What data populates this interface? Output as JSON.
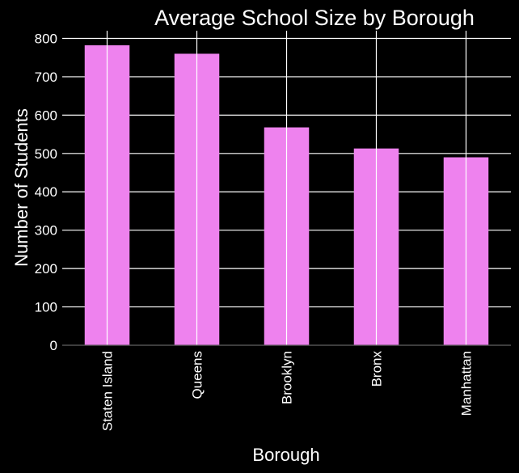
{
  "chart_data": {
    "type": "bar",
    "title": "Average School Size by Borough",
    "xlabel": "Borough",
    "ylabel": "Number of Students",
    "categories": [
      "Staten Island",
      "Queens",
      "Brooklyn",
      "Bronx",
      "Manhattan"
    ],
    "values": [
      782,
      760,
      568,
      513,
      490
    ],
    "ylim": [
      0,
      820
    ],
    "yticks": [
      0,
      100,
      200,
      300,
      400,
      500,
      600,
      700,
      800
    ],
    "grid": true,
    "bar_color": "#ee82ee",
    "background_color": "#000000",
    "grid_color": "#ffffff"
  }
}
